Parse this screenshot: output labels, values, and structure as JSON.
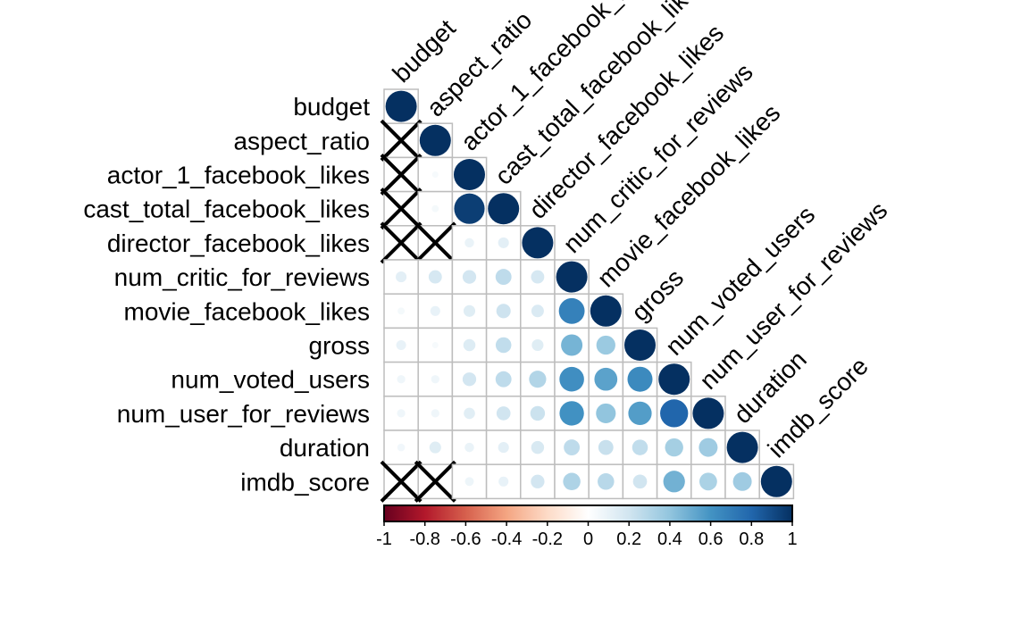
{
  "chart_data": {
    "type": "heatmap",
    "style": "corrplot-lower-circle",
    "title": "",
    "variables": [
      "budget",
      "aspect_ratio",
      "actor_1_facebook_likes",
      "cast_total_facebook_likes",
      "director_facebook_likes",
      "num_critic_for_reviews",
      "movie_facebook_likes",
      "gross",
      "num_voted_users",
      "num_user_for_reviews",
      "duration",
      "imdb_score"
    ],
    "matrix_lower": [
      [
        1
      ],
      [
        null,
        1
      ],
      [
        null,
        0.04,
        1
      ],
      [
        null,
        0.05,
        0.95,
        1
      ],
      [
        null,
        null,
        0.09,
        0.12,
        1
      ],
      [
        0.12,
        0.18,
        0.19,
        0.26,
        0.18,
        1
      ],
      [
        0.05,
        0.1,
        0.14,
        0.21,
        0.16,
        0.68,
        1
      ],
      [
        0.1,
        0.04,
        0.15,
        0.25,
        0.14,
        0.47,
        0.37,
        1
      ],
      [
        0.07,
        0.07,
        0.19,
        0.26,
        0.3,
        0.62,
        0.54,
        0.64,
        1
      ],
      [
        0.07,
        0.07,
        0.13,
        0.2,
        0.22,
        0.61,
        0.4,
        0.56,
        0.8,
        1
      ],
      [
        0.06,
        0.14,
        0.09,
        0.12,
        0.17,
        0.26,
        0.23,
        0.25,
        0.34,
        0.36,
        1
      ],
      [
        null,
        null,
        0.08,
        0.1,
        0.19,
        0.31,
        0.28,
        0.2,
        0.48,
        0.32,
        0.36,
        1
      ]
    ],
    "insignificant_marker": "X",
    "colorbar": {
      "range": [
        -1,
        1
      ],
      "ticks": [
        "-1",
        "-0.8",
        "-0.6",
        "-0.4",
        "-0.2",
        "0",
        "0.2",
        "0.4",
        "0.6",
        "0.8",
        "1"
      ],
      "colors": [
        "#67001f",
        "#b2182b",
        "#d6604d",
        "#f4a582",
        "#fddbc7",
        "#ffffff",
        "#d1e5f0",
        "#92c5de",
        "#4393c3",
        "#2166ac",
        "#053061"
      ]
    }
  }
}
